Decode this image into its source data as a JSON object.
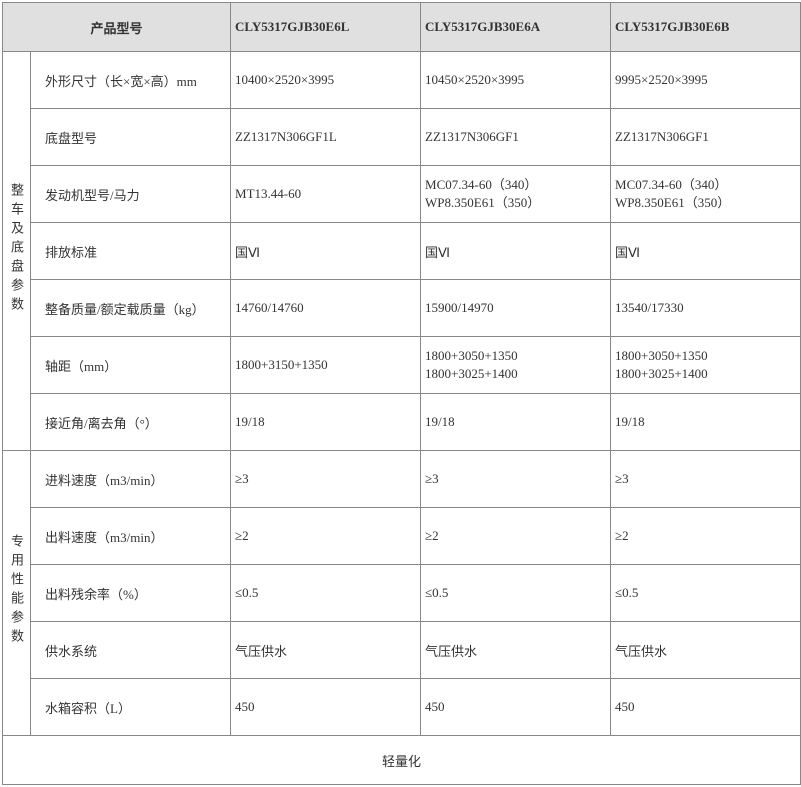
{
  "header": {
    "product_model": "产品型号",
    "models": [
      "CLY5317GJB30E6L",
      "CLY5317GJB30E6A",
      "CLY5317GJB30E6B"
    ]
  },
  "sections": {
    "chassis": {
      "title": "整车及底盘参数"
    },
    "perf": {
      "title": "专用性能参数"
    }
  },
  "rows": {
    "dim": {
      "label": "外形尺寸（长×宽×高）mm",
      "v": [
        "10400×2520×3995",
        "10450×2520×3995",
        "9995×2520×3995"
      ]
    },
    "chassis": {
      "label": "底盘型号",
      "v": [
        "ZZ1317N306GF1L",
        "ZZ1317N306GF1",
        "ZZ1317N306GF1"
      ]
    },
    "engine": {
      "label": "发动机型号/马力",
      "v": [
        "MT13.44-60",
        "MC07.34-60（340）\nWP8.350E61（350）",
        "MC07.34-60（340）\nWP8.350E61（350）"
      ]
    },
    "emission": {
      "label": "排放标准",
      "v": [
        "国Ⅵ",
        "国Ⅵ",
        "国Ⅵ"
      ]
    },
    "mass": {
      "label": "整备质量/额定载质量（kg）",
      "v": [
        "14760/14760",
        "15900/14970",
        "13540/17330"
      ]
    },
    "wheelbase": {
      "label": "轴距（mm）",
      "v": [
        "1800+3150+1350",
        "1800+3050+1350\n1800+3025+1400",
        "1800+3050+1350\n1800+3025+1400"
      ]
    },
    "angle": {
      "label": "接近角/离去角（°）",
      "v": [
        "19/18",
        "19/18",
        "19/18"
      ]
    },
    "feed": {
      "label": "进料速度（m3/min）",
      "v": [
        "≥3",
        "≥3",
        "≥3"
      ]
    },
    "out": {
      "label": "出料速度（m3/min）",
      "v": [
        "≥2",
        "≥2",
        "≥2"
      ]
    },
    "residue": {
      "label": "出料残余率（%）",
      "v": [
        "≤0.5",
        "≤0.5",
        "≤0.5"
      ]
    },
    "water": {
      "label": "供水系统",
      "v": [
        "气压供水",
        "气压供水",
        "气压供水"
      ]
    },
    "tank": {
      "label": "水箱容积（L）",
      "v": [
        "450",
        "450",
        "450"
      ]
    }
  },
  "footer": "轻量化"
}
